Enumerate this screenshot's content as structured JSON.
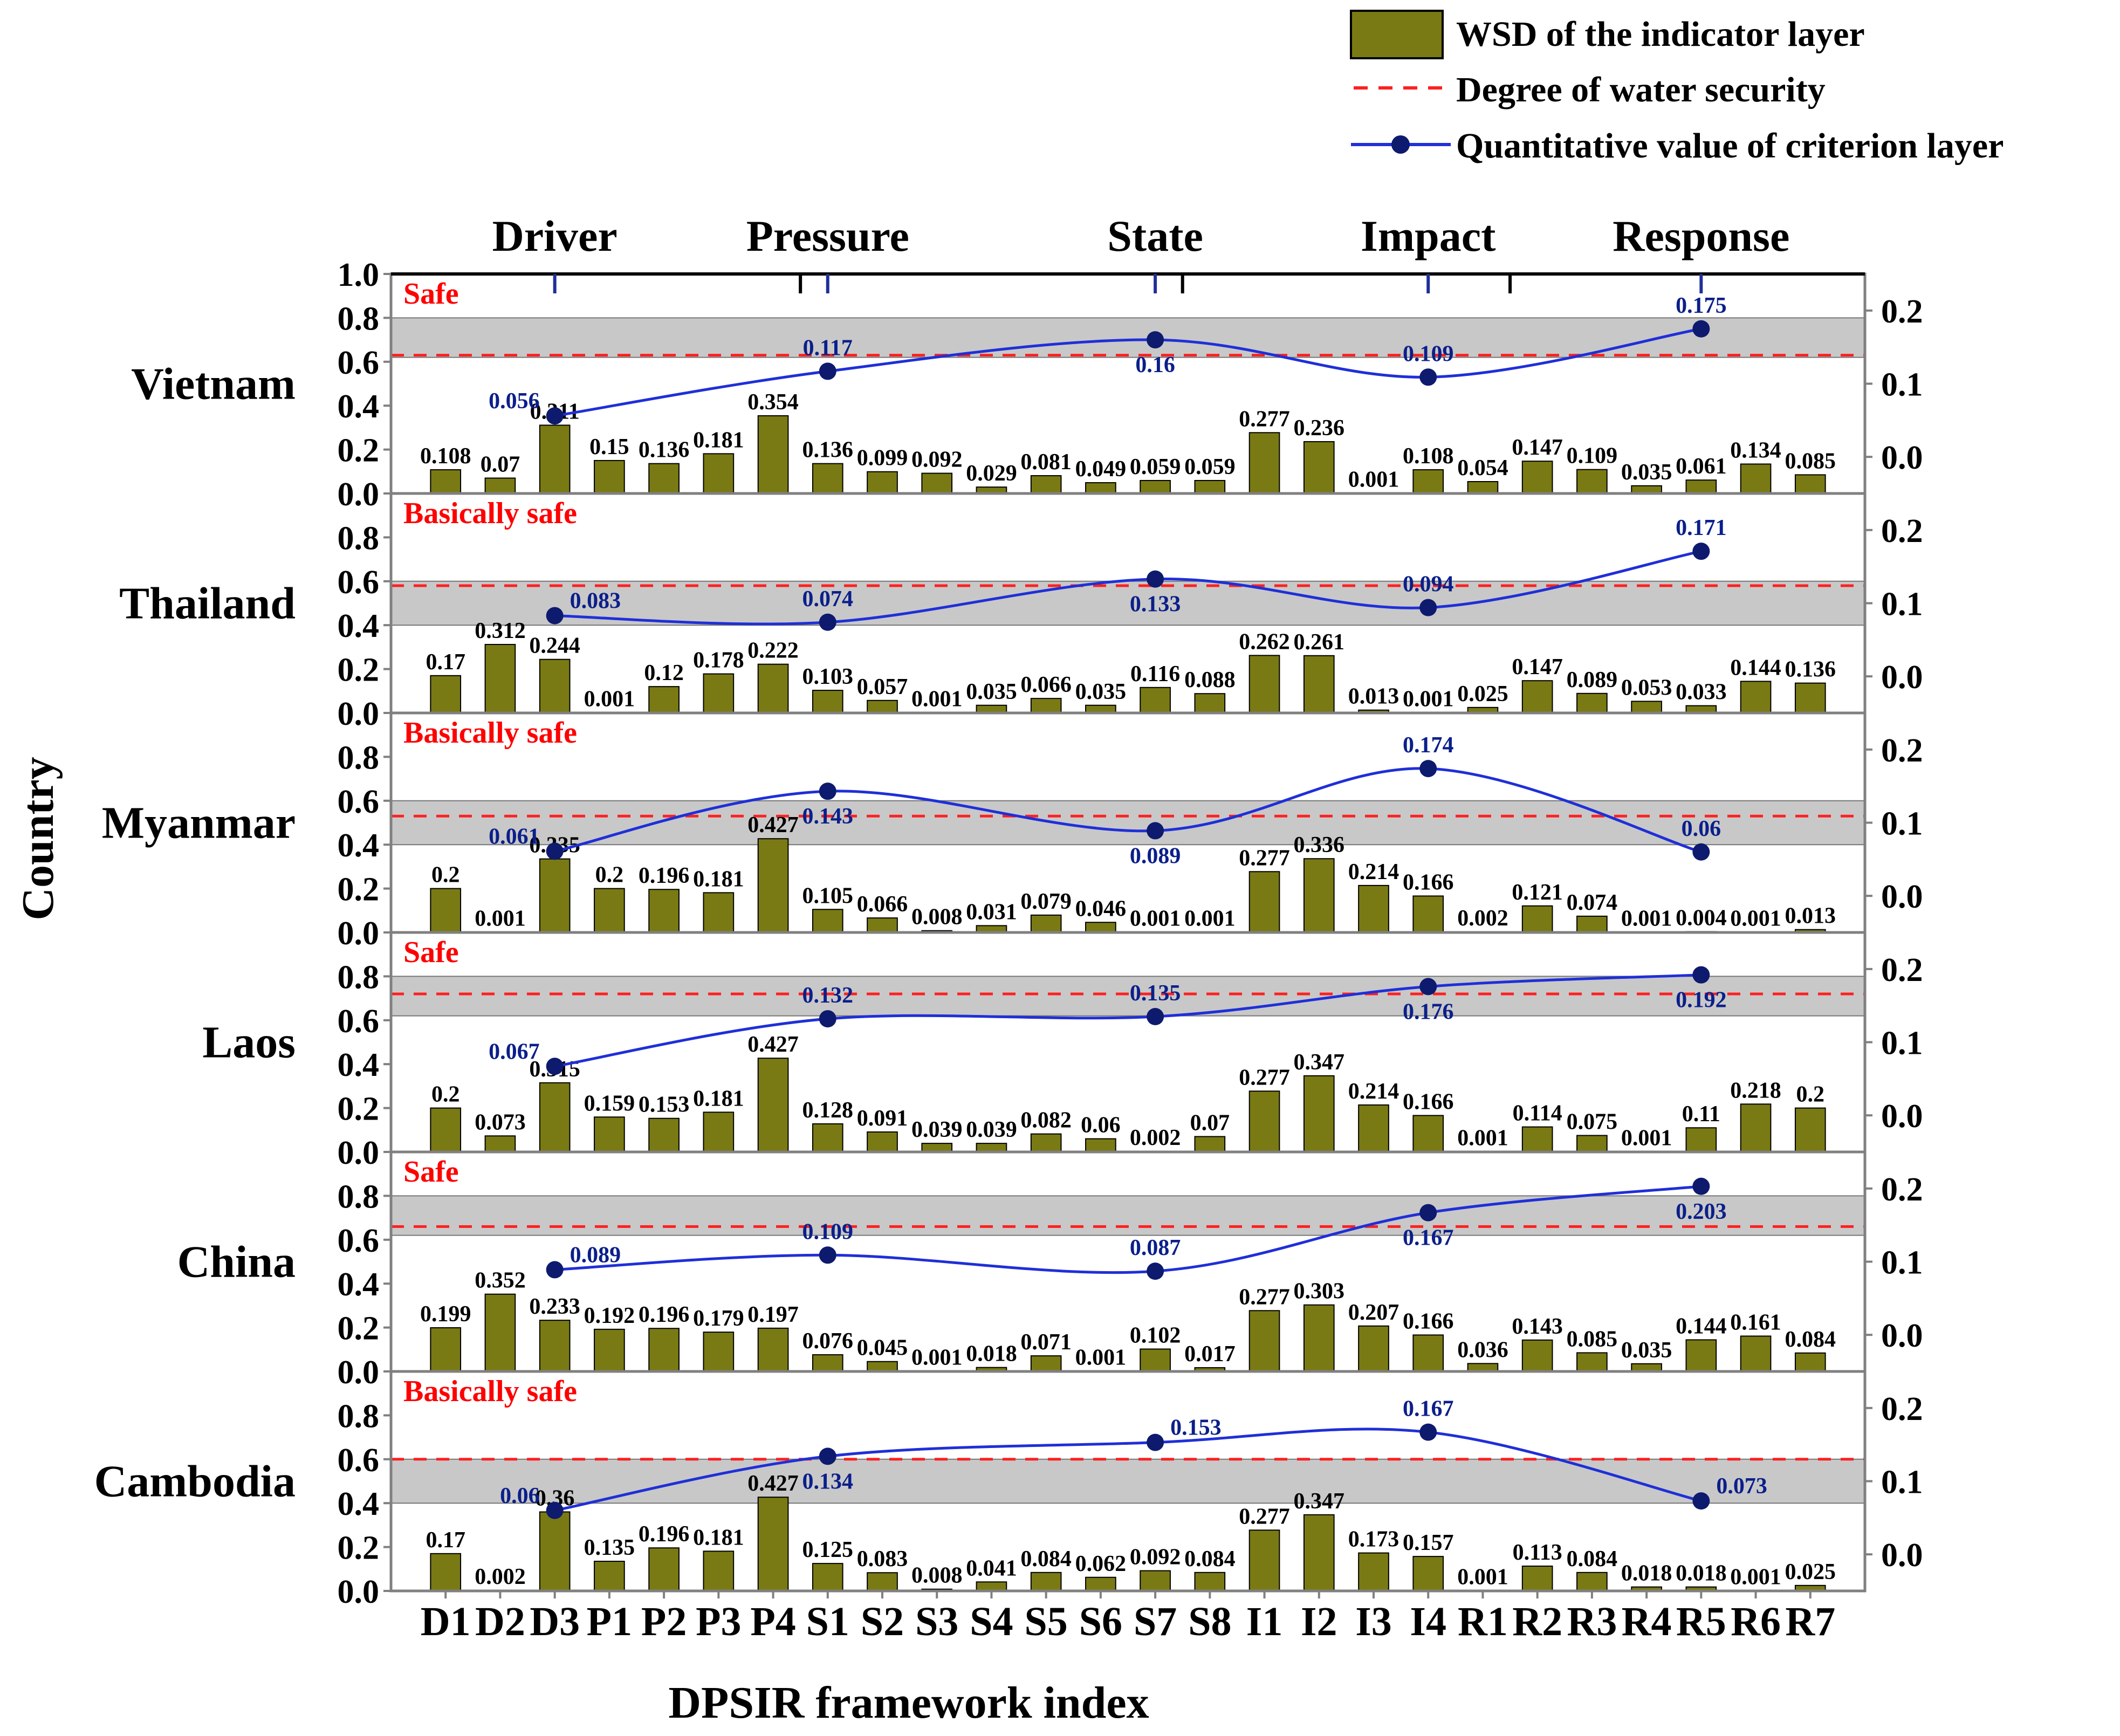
{
  "chart_data": {
    "type": "bar",
    "xlabel": "DPSIR framework index",
    "ylabel": "Country",
    "categories": [
      "D1",
      "D2",
      "D3",
      "P1",
      "P2",
      "P3",
      "P4",
      "S1",
      "S2",
      "S3",
      "S4",
      "S5",
      "S6",
      "S7",
      "S8",
      "I1",
      "I2",
      "I3",
      "I4",
      "R1",
      "R2",
      "R3",
      "R4",
      "R5",
      "R6",
      "R7"
    ],
    "groups": [
      "Driver",
      "Pressure",
      "State",
      "Impact",
      "Response"
    ],
    "y_left_ticks": [
      "0.0",
      "0.2",
      "0.4",
      "0.6",
      "0.8",
      "1.0"
    ],
    "y_right_ticks": [
      "0.0",
      "0.1",
      "0.2"
    ],
    "ylim_left": [
      0,
      1.0
    ],
    "ylim_right": [
      -0.05,
      0.25
    ],
    "legend": {
      "bar": "WSD of the indicator layer",
      "dashed": "Degree of water security",
      "line": "Quantitative value of criterion layer"
    },
    "colors": {
      "bar": "#7a7a14",
      "line": "#1f2fd8",
      "point": "#0d1a6e",
      "dashed": "#ff2020",
      "band": "#c8c8c8"
    },
    "point_index_positions": [
      2,
      7,
      13,
      18,
      23
    ],
    "panels": [
      {
        "country": "Vietnam",
        "status": "Safe",
        "band": [
          0.62,
          0.8
        ],
        "degree": 0.63,
        "values": [
          0.108,
          0.07,
          0.311,
          0.15,
          0.136,
          0.181,
          0.354,
          0.136,
          0.099,
          0.092,
          0.029,
          0.081,
          0.049,
          0.059,
          0.059,
          0.277,
          0.236,
          0.001,
          0.108,
          0.054,
          0.147,
          0.109,
          0.035,
          0.061,
          0.134,
          0.085
        ],
        "labels": [
          "0.108",
          "0.07",
          "0.311",
          "0.15",
          "0.136",
          "0.181",
          "0.354",
          "0.136",
          "0.099",
          "0.092",
          "0.029",
          "0.081",
          "0.049",
          "0.059",
          "0.059",
          "0.277",
          "0.236",
          "0.001",
          "0.108",
          "0.054",
          "0.147",
          "0.109",
          "0.035",
          "0.061",
          "0.134",
          "0.085"
        ],
        "criterion_values": [
          0.056,
          0.117,
          0.16,
          0.109,
          0.175
        ],
        "criterion_labels": [
          "0.056",
          "0.117",
          "0.16",
          "0.109",
          "0.175"
        ],
        "criterion_label_pos": [
          "left",
          "above",
          "below",
          "above",
          "above"
        ]
      },
      {
        "country": "Thailand",
        "status": "Basically safe",
        "band": [
          0.4,
          0.6
        ],
        "degree": 0.58,
        "values": [
          0.17,
          0.312,
          0.244,
          0.001,
          0.12,
          0.178,
          0.222,
          0.103,
          0.057,
          0.001,
          0.035,
          0.066,
          0.035,
          0.116,
          0.088,
          0.262,
          0.261,
          0.013,
          0.001,
          0.025,
          0.147,
          0.089,
          0.053,
          0.033,
          0.144,
          0.136
        ],
        "labels": [
          "0.17",
          "0.312",
          "0.244",
          "0.001",
          "0.12",
          "0.178",
          "0.222",
          "0.103",
          "0.057",
          "0.001",
          "0.035",
          "0.066",
          "0.035",
          "0.116",
          "0.088",
          "0.262",
          "0.261",
          "0.013",
          "0.001",
          "0.025",
          "0.147",
          "0.089",
          "0.053",
          "0.033",
          "0.144",
          "0.136"
        ],
        "criterion_values": [
          0.083,
          0.074,
          0.133,
          0.094,
          0.171
        ],
        "criterion_labels": [
          "0.083",
          "0.074",
          "0.133",
          "0.094",
          "0.171"
        ],
        "criterion_label_pos": [
          "right",
          "above",
          "below",
          "above",
          "above"
        ]
      },
      {
        "country": "Myanmar",
        "status": "Basically safe",
        "band": [
          0.4,
          0.6
        ],
        "degree": 0.53,
        "values": [
          0.2,
          0.001,
          0.335,
          0.2,
          0.196,
          0.181,
          0.427,
          0.105,
          0.066,
          0.008,
          0.031,
          0.079,
          0.046,
          0.001,
          0.001,
          0.277,
          0.336,
          0.214,
          0.166,
          0.002,
          0.121,
          0.074,
          0.001,
          0.004,
          0.001,
          0.013
        ],
        "labels": [
          "0.2",
          "0.001",
          "0.335",
          "0.2",
          "0.196",
          "0.181",
          "0.427",
          "0.105",
          "0.066",
          "0.008",
          "0.031",
          "0.079",
          "0.046",
          "0.001",
          "0.001",
          "0.277",
          "0.336",
          "0.214",
          "0.166",
          "0.002",
          "0.121",
          "0.074",
          "0.001",
          "0.004",
          "0.001",
          "0.013"
        ],
        "criterion_values": [
          0.061,
          0.143,
          0.089,
          0.174,
          0.06
        ],
        "criterion_labels": [
          "0.061",
          "0.143",
          "0.089",
          "0.174",
          "0.06"
        ],
        "criterion_label_pos": [
          "left",
          "below",
          "below",
          "above",
          "above"
        ]
      },
      {
        "country": "Laos",
        "status": "Safe",
        "band": [
          0.62,
          0.8
        ],
        "degree": 0.72,
        "values": [
          0.2,
          0.073,
          0.315,
          0.159,
          0.153,
          0.181,
          0.427,
          0.128,
          0.091,
          0.039,
          0.039,
          0.082,
          0.06,
          0.002,
          0.07,
          0.277,
          0.347,
          0.214,
          0.166,
          0.001,
          0.114,
          0.075,
          0.001,
          0.11,
          0.218,
          0.2
        ],
        "labels": [
          "0.2",
          "0.073",
          "0.315",
          "0.159",
          "0.153",
          "0.181",
          "0.427",
          "0.128",
          "0.091",
          "0.039",
          "0.039",
          "0.082",
          "0.06",
          "0.002",
          "0.07",
          "0.277",
          "0.347",
          "0.214",
          "0.166",
          "0.001",
          "0.114",
          "0.075",
          "0.001",
          "0.11",
          "0.218",
          "0.2"
        ],
        "criterion_values": [
          0.067,
          0.132,
          0.135,
          0.176,
          0.192
        ],
        "criterion_labels": [
          "0.067",
          "0.132",
          "0.135",
          "0.176",
          "0.192"
        ],
        "criterion_label_pos": [
          "left",
          "above",
          "above",
          "below",
          "below"
        ]
      },
      {
        "country": "China",
        "status": "Safe",
        "band": [
          0.62,
          0.8
        ],
        "degree": 0.66,
        "values": [
          0.199,
          0.352,
          0.233,
          0.192,
          0.196,
          0.179,
          0.197,
          0.076,
          0.045,
          0.001,
          0.018,
          0.071,
          0.001,
          0.102,
          0.017,
          0.277,
          0.303,
          0.207,
          0.166,
          0.036,
          0.143,
          0.085,
          0.035,
          0.144,
          0.161,
          0.084
        ],
        "labels": [
          "0.199",
          "0.352",
          "0.233",
          "0.192",
          "0.196",
          "0.179",
          "0.197",
          "0.076",
          "0.045",
          "0.001",
          "0.018",
          "0.071",
          "0.001",
          "0.102",
          "0.017",
          "0.277",
          "0.303",
          "0.207",
          "0.166",
          "0.036",
          "0.143",
          "0.085",
          "0.035",
          "0.144",
          "0.161",
          "0.084"
        ],
        "criterion_values": [
          0.089,
          0.109,
          0.087,
          0.167,
          0.203
        ],
        "criterion_labels": [
          "0.089",
          "0.109",
          "0.087",
          "0.167",
          "0.203"
        ],
        "criterion_label_pos": [
          "right",
          "above",
          "above",
          "below",
          "below"
        ]
      },
      {
        "country": "Cambodia",
        "status": "Basically safe",
        "band": [
          0.4,
          0.6
        ],
        "degree": 0.6,
        "values": [
          0.17,
          0.002,
          0.36,
          0.135,
          0.196,
          0.181,
          0.427,
          0.125,
          0.083,
          0.008,
          0.041,
          0.084,
          0.062,
          0.092,
          0.084,
          0.277,
          0.347,
          0.173,
          0.157,
          0.001,
          0.113,
          0.084,
          0.018,
          0.018,
          0.001,
          0.025
        ],
        "labels": [
          "0.17",
          "0.002",
          "0.36",
          "0.135",
          "0.196",
          "0.181",
          "0.427",
          "0.125",
          "0.083",
          "0.008",
          "0.041",
          "0.084",
          "0.062",
          "0.092",
          "0.084",
          "0.277",
          "0.347",
          "0.173",
          "0.157",
          "0.001",
          "0.113",
          "0.084",
          "0.018",
          "0.018",
          "0.001",
          "0.025"
        ],
        "criterion_values": [
          0.06,
          0.134,
          0.153,
          0.167,
          0.073
        ],
        "criterion_labels": [
          "0.06",
          "0.134",
          "0.153",
          "0.167",
          "0.073"
        ],
        "criterion_label_pos": [
          "left",
          "below",
          "right",
          "above",
          "right"
        ]
      }
    ]
  }
}
